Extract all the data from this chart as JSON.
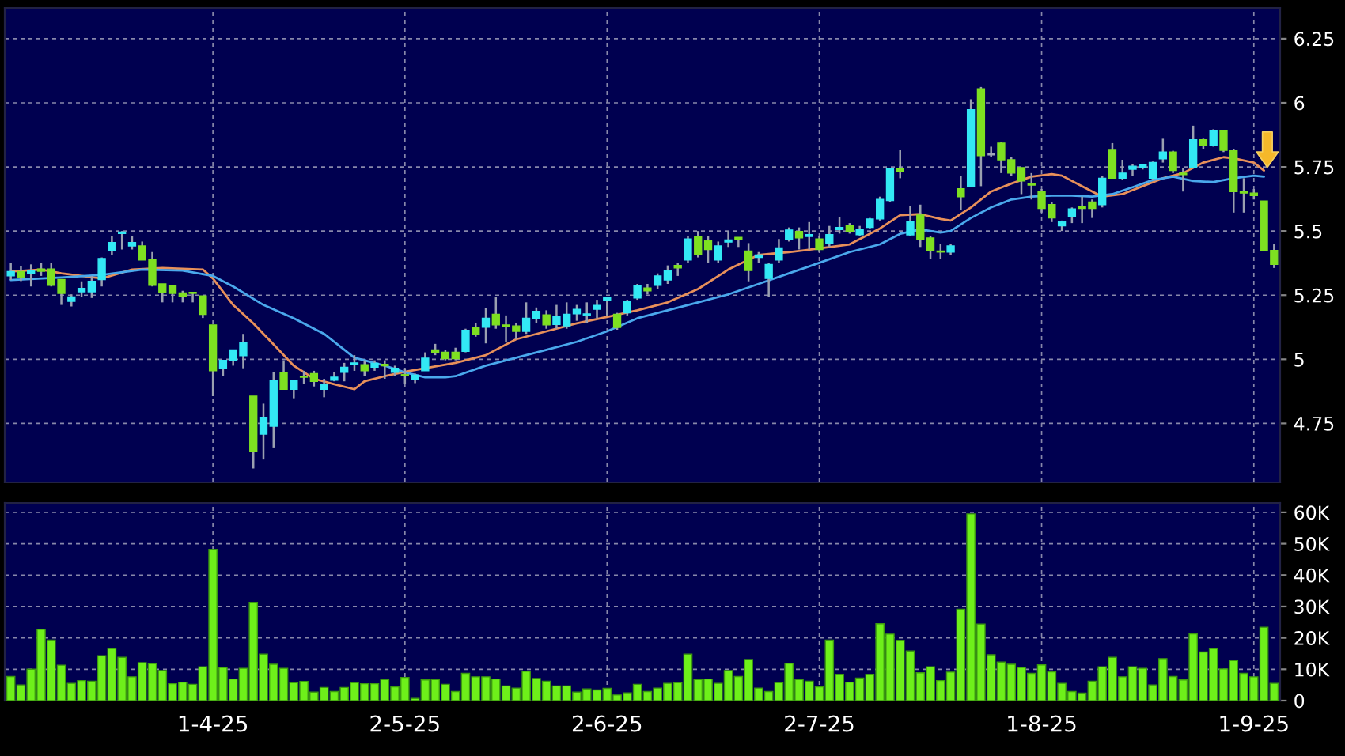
{
  "chart_data": [
    {
      "type": "candlestick",
      "categories": [
        null,
        null,
        null,
        null,
        null,
        null,
        null,
        null,
        null,
        null,
        null,
        null,
        null,
        null,
        null,
        null,
        null,
        null,
        null,
        null,
        null,
        null,
        null,
        null,
        null,
        null,
        null,
        null,
        null,
        null,
        null,
        null,
        null,
        null,
        null,
        null,
        null,
        null,
        null,
        null,
        null,
        null,
        null,
        null,
        null,
        null,
        null,
        null,
        null,
        null,
        null,
        null,
        null,
        null,
        null,
        null,
        null,
        null,
        null,
        null,
        null,
        null,
        null,
        null,
        null,
        null,
        null,
        null,
        null,
        null,
        null,
        null,
        null,
        null,
        null,
        null,
        null,
        null,
        null,
        null,
        null,
        null,
        null,
        null,
        null,
        null,
        null,
        null,
        null,
        null,
        null,
        null,
        null,
        null,
        null,
        null,
        null,
        null,
        null,
        null,
        null,
        null,
        null,
        null,
        null,
        null,
        null,
        null,
        null,
        null,
        null,
        null,
        null,
        null,
        null,
        null,
        null,
        null,
        null,
        null,
        null,
        null,
        null,
        null,
        null,
        null
      ],
      "series": [
        {
          "type": "candlestick",
          "ohlc": [
            [
              5.325,
              5.377,
              5.309,
              5.342
            ],
            [
              5.342,
              5.362,
              5.305,
              5.319
            ],
            [
              5.335,
              5.37,
              5.284,
              5.346
            ],
            [
              5.352,
              5.377,
              5.325,
              5.343
            ],
            [
              5.352,
              5.377,
              5.284,
              5.288
            ],
            [
              5.311,
              5.311,
              5.212,
              5.257
            ],
            [
              5.226,
              5.253,
              5.206,
              5.243
            ],
            [
              5.263,
              5.304,
              5.243,
              5.276
            ],
            [
              5.263,
              5.325,
              5.239,
              5.304
            ],
            [
              5.311,
              5.397,
              5.284,
              5.393
            ],
            [
              5.424,
              5.479,
              5.407,
              5.455
            ],
            [
              5.49,
              5.5,
              5.428,
              5.496
            ],
            [
              5.442,
              5.479,
              5.428,
              5.455
            ],
            [
              5.442,
              5.459,
              5.387,
              5.387
            ],
            [
              5.387,
              5.418,
              5.284,
              5.288
            ],
            [
              5.294,
              5.294,
              5.222,
              5.259
            ],
            [
              5.288,
              5.288,
              5.222,
              5.257
            ],
            [
              5.259,
              5.267,
              5.222,
              5.247
            ],
            [
              5.261,
              5.261,
              5.222,
              5.257
            ],
            [
              5.247,
              5.247,
              5.161,
              5.175
            ],
            [
              5.134,
              5.134,
              4.856,
              4.955
            ],
            [
              4.965,
              4.996,
              4.934,
              4.996
            ],
            [
              4.996,
              5.037,
              4.975,
              5.037
            ],
            [
              5.014,
              5.099,
              4.965,
              5.066
            ],
            [
              4.856,
              4.856,
              4.574,
              4.642
            ],
            [
              4.708,
              4.827,
              4.609,
              4.774
            ],
            [
              4.739,
              4.951,
              4.656,
              4.918
            ],
            [
              4.949,
              4.996,
              4.883,
              4.883
            ],
            [
              4.883,
              4.918,
              4.848,
              4.918
            ],
            [
              4.934,
              4.955,
              4.904,
              4.93
            ],
            [
              4.944,
              4.955,
              4.894,
              4.914
            ],
            [
              4.883,
              4.924,
              4.852,
              4.903
            ],
            [
              4.918,
              4.951,
              4.914,
              4.93
            ],
            [
              4.949,
              4.986,
              4.914,
              4.969
            ],
            [
              4.979,
              5.016,
              4.955,
              4.986
            ],
            [
              4.979,
              4.996,
              4.934,
              4.955
            ],
            [
              4.969,
              4.996,
              4.955,
              4.984
            ],
            [
              4.98,
              4.996,
              4.924,
              4.975
            ],
            [
              4.949,
              4.975,
              4.934,
              4.965
            ],
            [
              4.94,
              4.965,
              4.904,
              4.936
            ],
            [
              4.92,
              4.944,
              4.907,
              4.938
            ],
            [
              4.955,
              5.027,
              4.955,
              5.004
            ],
            [
              5.037,
              5.06,
              5.016,
              5.027
            ],
            [
              5.027,
              5.037,
              4.996,
              5.002
            ],
            [
              5.027,
              5.045,
              4.996,
              5.002
            ],
            [
              5.031,
              5.119,
              5.027,
              5.113
            ],
            [
              5.125,
              5.14,
              5.088,
              5.099
            ],
            [
              5.125,
              5.2,
              5.062,
              5.16
            ],
            [
              5.175,
              5.243,
              5.119,
              5.134
            ],
            [
              5.134,
              5.171,
              5.068,
              5.128
            ],
            [
              5.13,
              5.14,
              5.078,
              5.109
            ],
            [
              5.109,
              5.222,
              5.099,
              5.16
            ],
            [
              5.16,
              5.202,
              5.14,
              5.187
            ],
            [
              5.173,
              5.191,
              5.119,
              5.134
            ],
            [
              5.136,
              5.212,
              5.119,
              5.165
            ],
            [
              5.13,
              5.222,
              5.119,
              5.175
            ],
            [
              5.177,
              5.212,
              5.15,
              5.195
            ],
            [
              5.171,
              5.222,
              5.14,
              5.177
            ],
            [
              5.195,
              5.232,
              5.16,
              5.21
            ],
            [
              5.228,
              5.243,
              5.171,
              5.239
            ],
            [
              5.175,
              5.181,
              5.115,
              5.124
            ],
            [
              5.181,
              5.232,
              5.171,
              5.226
            ],
            [
              5.239,
              5.294,
              5.232,
              5.288
            ],
            [
              5.278,
              5.294,
              5.253,
              5.267
            ],
            [
              5.288,
              5.335,
              5.274,
              5.325
            ],
            [
              5.309,
              5.366,
              5.294,
              5.346
            ],
            [
              5.366,
              5.376,
              5.325,
              5.356
            ],
            [
              5.387,
              5.479,
              5.376,
              5.469
            ],
            [
              5.479,
              5.5,
              5.397,
              5.407
            ],
            [
              5.463,
              5.479,
              5.376,
              5.428
            ],
            [
              5.387,
              5.459,
              5.376,
              5.442
            ],
            [
              5.457,
              5.5,
              5.438,
              5.465
            ],
            [
              5.475,
              5.475,
              5.438,
              5.469
            ],
            [
              5.422,
              5.453,
              5.304,
              5.346
            ],
            [
              5.397,
              5.418,
              5.376,
              5.407
            ],
            [
              5.315,
              5.376,
              5.243,
              5.37
            ],
            [
              5.387,
              5.469,
              5.376,
              5.434
            ],
            [
              5.469,
              5.514,
              5.459,
              5.504
            ],
            [
              5.498,
              5.514,
              5.428,
              5.473
            ],
            [
              5.479,
              5.535,
              5.428,
              5.486
            ],
            [
              5.469,
              5.479,
              5.418,
              5.428
            ],
            [
              5.453,
              5.52,
              5.438,
              5.486
            ],
            [
              5.506,
              5.555,
              5.49,
              5.514
            ],
            [
              5.52,
              5.531,
              5.49,
              5.498
            ],
            [
              5.486,
              5.52,
              5.479,
              5.506
            ],
            [
              5.514,
              5.551,
              5.51,
              5.547
            ],
            [
              5.547,
              5.634,
              5.541,
              5.623
            ],
            [
              5.619,
              5.747,
              5.613,
              5.743
            ],
            [
              5.743,
              5.815,
              5.706,
              5.733
            ],
            [
              5.485,
              5.597,
              5.479,
              5.535
            ],
            [
              5.562,
              5.603,
              5.438,
              5.469
            ],
            [
              5.473,
              5.479,
              5.391,
              5.424
            ],
            [
              5.422,
              5.448,
              5.391,
              5.418
            ],
            [
              5.418,
              5.448,
              5.407,
              5.442
            ],
            [
              5.665,
              5.716,
              5.582,
              5.634
            ],
            [
              5.675,
              6.014,
              5.675,
              5.973
            ],
            [
              6.055,
              6.062,
              5.675,
              5.794
            ],
            [
              5.8,
              5.829,
              5.788,
              5.8
            ],
            [
              5.843,
              5.849,
              5.726,
              5.778
            ],
            [
              5.778,
              5.788,
              5.716,
              5.726
            ],
            [
              5.747,
              5.747,
              5.644,
              5.695
            ],
            [
              5.685,
              5.726,
              5.623,
              5.679
            ],
            [
              5.654,
              5.664,
              5.572,
              5.588
            ],
            [
              5.603,
              5.613,
              5.535,
              5.551
            ],
            [
              5.52,
              5.541,
              5.5,
              5.537
            ],
            [
              5.555,
              5.592,
              5.531,
              5.586
            ],
            [
              5.597,
              5.634,
              5.531,
              5.588
            ],
            [
              5.613,
              5.623,
              5.551,
              5.588
            ],
            [
              5.603,
              5.716,
              5.592,
              5.706
            ],
            [
              5.815,
              5.843,
              5.706,
              5.706
            ],
            [
              5.706,
              5.778,
              5.699,
              5.726
            ],
            [
              5.741,
              5.761,
              5.716,
              5.753
            ],
            [
              5.747,
              5.761,
              5.74,
              5.757
            ],
            [
              5.706,
              5.771,
              5.699,
              5.767
            ],
            [
              5.782,
              5.86,
              5.767,
              5.808
            ],
            [
              5.808,
              5.813,
              5.726,
              5.736
            ],
            [
              5.726,
              5.747,
              5.654,
              5.72
            ],
            [
              5.747,
              5.911,
              5.747,
              5.856
            ],
            [
              5.856,
              5.86,
              5.819,
              5.833
            ],
            [
              5.835,
              5.897,
              5.829,
              5.891
            ],
            [
              5.891,
              5.895,
              5.808,
              5.815
            ],
            [
              5.813,
              5.819,
              5.572,
              5.654
            ],
            [
              5.654,
              5.706,
              5.572,
              5.648
            ],
            [
              5.648,
              5.664,
              5.623,
              5.638
            ],
            [
              5.617,
              5.617,
              5.424,
              5.424
            ],
            [
              5.424,
              5.448,
              5.356,
              5.37
            ]
          ],
          "colors": [
            "#33e8f4",
            "#7ee021",
            "#33e8f4",
            "#7ee021",
            "#7ee021",
            "#7ee021",
            "#33e8f4",
            "#33e8f4",
            "#33e8f4",
            "#33e8f4",
            "#33e8f4",
            "#33e8f4",
            "#33e8f4",
            "#7ee021",
            "#7ee021",
            "#7ee021",
            "#7ee021",
            "#7ee021",
            "#7ee021",
            "#7ee021",
            "#7ee021",
            "#33e8f4",
            "#33e8f4",
            "#33e8f4",
            "#7ee021",
            "#33e8f4",
            "#33e8f4",
            "#7ee021",
            "#33e8f4",
            "#7ee021",
            "#7ee021",
            "#33e8f4",
            "#33e8f4",
            "#33e8f4",
            "#33e8f4",
            "#7ee021",
            "#33e8f4",
            "#7ee021",
            "#33e8f4",
            "#7ee021",
            "#33e8f4",
            "#33e8f4",
            "#7ee021",
            "#7ee021",
            "#7ee021",
            "#33e8f4",
            "#7ee021",
            "#33e8f4",
            "#7ee021",
            "#7ee021",
            "#7ee021",
            "#33e8f4",
            "#33e8f4",
            "#7ee021",
            "#33e8f4",
            "#33e8f4",
            "#33e8f4",
            "#33e8f4",
            "#33e8f4",
            "#33e8f4",
            "#7ee021",
            "#33e8f4",
            "#33e8f4",
            "#7ee021",
            "#33e8f4",
            "#33e8f4",
            "#7ee021",
            "#33e8f4",
            "#7ee021",
            "#7ee021",
            "#33e8f4",
            "#33e8f4",
            "#7ee021",
            "#7ee021",
            "#33e8f4",
            "#33e8f4",
            "#33e8f4",
            "#33e8f4",
            "#7ee021",
            "#33e8f4",
            "#7ee021",
            "#33e8f4",
            "#33e8f4",
            "#7ee021",
            "#33e8f4",
            "#33e8f4",
            "#33e8f4",
            "#33e8f4",
            "#7ee021",
            "#33e8f4",
            "#7ee021",
            "#7ee021",
            "#7ee021",
            "#33e8f4",
            "#7ee021",
            "#33e8f4",
            "#7ee021",
            "#a0a8b8",
            "#7ee021",
            "#7ee021",
            "#7ee021",
            "#7ee021",
            "#7ee021",
            "#7ee021",
            "#33e8f4",
            "#33e8f4",
            "#7ee021",
            "#7ee021",
            "#33e8f4",
            "#7ee021",
            "#33e8f4",
            "#33e8f4",
            "#33e8f4",
            "#33e8f4",
            "#33e8f4",
            "#7ee021",
            "#7ee021",
            "#33e8f4",
            "#7ee021",
            "#33e8f4",
            "#7ee021",
            "#7ee021",
            "#7ee021",
            "#7ee021",
            "#7ee021",
            "#7ee021"
          ]
        },
        {
          "type": "line",
          "color": "#e8905a",
          "values": [
            5.342,
            null,
            null,
            5.35,
            null,
            5.335,
            null,
            null,
            null,
            5.315,
            null,
            null,
            5.35,
            null,
            null,
            5.356,
            null,
            null,
            null,
            5.35,
            5.315,
            null,
            5.212,
            null,
            5.14,
            null,
            5.058,
            null,
            4.975,
            null,
            4.924,
            null,
            4.903,
            null,
            4.883,
            4.914,
            null,
            4.934,
            null,
            4.951,
            null,
            4.965,
            null,
            4.979,
            4.986,
            null,
            null,
            5.016,
            null,
            null,
            5.078,
            null,
            null,
            5.109,
            null,
            null,
            5.14,
            null,
            null,
            5.165,
            null,
            null,
            5.191,
            null,
            null,
            5.222,
            null,
            null,
            5.274,
            null,
            null,
            5.35,
            null,
            null,
            5.407,
            null,
            null,
            5.418,
            null,
            null,
            5.432,
            null,
            null,
            5.448,
            null,
            null,
            5.51,
            null,
            5.562,
            null,
            5.566,
            null,
            5.547,
            5.541,
            null,
            5.592,
            null,
            5.654,
            null,
            5.685,
            null,
            5.712,
            null,
            5.722,
            5.716,
            null,
            5.675,
            null,
            5.634,
            null,
            5.644,
            null,
            5.675,
            null,
            5.706,
            null,
            5.726,
            null,
            5.767,
            null,
            5.788,
            5.784,
            null,
            5.767,
            5.736,
            null
          ]
        },
        {
          "type": "line",
          "color": "#4aa8ec",
          "values": [
            5.309,
            null,
            null,
            null,
            null,
            5.319,
            null,
            null,
            null,
            5.329,
            null,
            null,
            null,
            5.35,
            null,
            null,
            null,
            5.346,
            null,
            null,
            5.325,
            null,
            5.284,
            null,
            null,
            5.212,
            null,
            null,
            5.16,
            null,
            null,
            5.099,
            null,
            null,
            5.006,
            null,
            null,
            4.975,
            null,
            4.949,
            null,
            4.93,
            null,
            4.93,
            4.934,
            null,
            null,
            4.975,
            null,
            null,
            5.006,
            null,
            null,
            5.037,
            null,
            null,
            5.068,
            null,
            null,
            5.109,
            null,
            null,
            5.16,
            null,
            null,
            5.191,
            null,
            null,
            5.222,
            null,
            null,
            5.253,
            null,
            null,
            5.294,
            null,
            null,
            5.335,
            null,
            null,
            5.376,
            null,
            null,
            5.418,
            null,
            null,
            5.448,
            null,
            5.489,
            null,
            5.506,
            null,
            5.494,
            5.5,
            null,
            5.551,
            null,
            5.592,
            null,
            5.623,
            null,
            5.634,
            null,
            5.638,
            null,
            5.638,
            null,
            5.634,
            null,
            5.644,
            null,
            5.671,
            null,
            5.699,
            null,
            5.712,
            null,
            5.695,
            null,
            5.691,
            null,
            5.706,
            null,
            5.716,
            5.712,
            null
          ]
        }
      ],
      "ylim": [
        4.52,
        6.37
      ],
      "yticks": [
        4.75,
        5,
        5.25,
        5.5,
        5.75,
        6,
        6.25
      ],
      "grid": true,
      "tick_labels": "y"
    },
    {
      "type": "bar",
      "categories": [
        null,
        null,
        null,
        null,
        null,
        null,
        null,
        null,
        null,
        null,
        null,
        null,
        null,
        null,
        null,
        null,
        null,
        null,
        null,
        null,
        "1-4-25",
        null,
        null,
        null,
        null,
        null,
        null,
        null,
        null,
        null,
        null,
        null,
        null,
        null,
        null,
        null,
        null,
        null,
        null,
        "2-5-25",
        null,
        null,
        null,
        null,
        null,
        null,
        null,
        null,
        null,
        null,
        null,
        null,
        null,
        null,
        null,
        null,
        null,
        null,
        null,
        "2-6-25",
        null,
        null,
        null,
        null,
        null,
        null,
        null,
        null,
        null,
        null,
        null,
        null,
        null,
        null,
        null,
        null,
        null,
        null,
        null,
        null,
        "2-7-25",
        null,
        null,
        null,
        null,
        null,
        null,
        null,
        null,
        null,
        null,
        null,
        null,
        null,
        null,
        null,
        null,
        null,
        null,
        null,
        null,
        null,
        "1-8-25",
        null,
        null,
        null,
        null,
        null,
        null,
        null,
        null,
        null,
        null,
        null,
        null,
        null,
        null,
        null,
        null,
        null,
        null,
        null,
        null,
        "1-9-25",
        null,
        null
      ],
      "series": [
        {
          "color": "#6ef01a",
          "values": [
            7700,
            5000,
            10000,
            22700,
            19300,
            11300,
            5500,
            6400,
            6200,
            14300,
            16600,
            13800,
            7600,
            12100,
            11800,
            9600,
            5400,
            5900,
            5200,
            10800,
            48200,
            10600,
            6900,
            10300,
            31300,
            14800,
            11600,
            10300,
            5700,
            6100,
            2700,
            4200,
            2900,
            4200,
            5700,
            5400,
            5400,
            6700,
            4400,
            7400,
            700,
            6600,
            6700,
            5200,
            2900,
            8700,
            7600,
            7600,
            6900,
            4700,
            4000,
            9400,
            7100,
            6200,
            4700,
            4700,
            2700,
            3700,
            3400,
            3900,
            1800,
            2500,
            5200,
            2900,
            4000,
            5500,
            5700,
            14800,
            6700,
            6900,
            5500,
            9600,
            7700,
            13100,
            4000,
            2900,
            5700,
            11900,
            6700,
            6200,
            4400,
            19300,
            8400,
            5900,
            7200,
            8400,
            24500,
            21200,
            19200,
            15800,
            8900,
            10800,
            6400,
            9100,
            29100,
            59500,
            24400,
            14600,
            12300,
            11600,
            10600,
            8700,
            11400,
            9200,
            5500,
            2900,
            2400,
            6200,
            10800,
            13800,
            7600,
            10800,
            10300,
            5000,
            13400,
            7700,
            6600,
            21300,
            15500,
            16600,
            10100,
            12800,
            8700,
            7600,
            23400,
            5500
          ]
        }
      ],
      "ylim": [
        0,
        63000
      ],
      "yticks": [
        0,
        {
          "value": 10000,
          "label": "10K"
        },
        {
          "value": 20000,
          "label": "20K"
        },
        {
          "value": 30000,
          "label": "30K"
        },
        {
          "value": 40000,
          "label": "40K"
        },
        {
          "value": 50000,
          "label": "50K"
        },
        {
          "value": 60000,
          "label": "60K"
        }
      ],
      "grid": true
    }
  ]
}
